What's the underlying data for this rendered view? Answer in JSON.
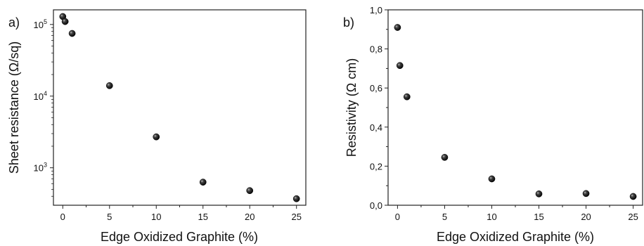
{
  "chart_data": [
    {
      "panel_label": "a)",
      "type": "scatter",
      "xlabel": "Edge Oxidized Graphite (%)",
      "ylabel": "Sheet resistance (Ω/sq)",
      "y_scale": "log",
      "xlim": [
        -1,
        26
      ],
      "ylim": [
        300,
        160000
      ],
      "x_ticks": [
        0,
        5,
        10,
        15,
        20,
        25
      ],
      "y_ticks": [
        1000,
        10000,
        100000
      ],
      "y_tick_labels": [
        {
          "base": "10",
          "exp": "3"
        },
        {
          "base": "10",
          "exp": "4"
        },
        {
          "base": "10",
          "exp": "5"
        }
      ],
      "grid": false,
      "points": [
        {
          "x": 0,
          "y": 129000
        },
        {
          "x": 0.25,
          "y": 110000
        },
        {
          "x": 1,
          "y": 75000
        },
        {
          "x": 5,
          "y": 14000
        },
        {
          "x": 10,
          "y": 2700
        },
        {
          "x": 15,
          "y": 630
        },
        {
          "x": 20,
          "y": 480
        },
        {
          "x": 25,
          "y": 370
        }
      ]
    },
    {
      "panel_label": "b)",
      "type": "scatter",
      "xlabel": "Edge Oxidized Graphite (%)",
      "ylabel": "Resistivity (Ω cm)",
      "y_scale": "linear",
      "xlim": [
        -1,
        26
      ],
      "ylim": [
        0,
        1.0
      ],
      "x_ticks": [
        0,
        5,
        10,
        15,
        20,
        25
      ],
      "x_tick_labels": [
        "0",
        "5",
        "10",
        "15",
        "20",
        "25"
      ],
      "y_ticks": [
        0,
        0.2,
        0.4,
        0.6,
        0.8,
        1.0
      ],
      "y_tick_labels": [
        "0,0",
        "0,2",
        "0,4",
        "0,6",
        "0,8",
        "1,0"
      ],
      "grid": false,
      "points": [
        {
          "x": 0,
          "y": 0.91
        },
        {
          "x": 0.25,
          "y": 0.715
        },
        {
          "x": 1,
          "y": 0.555
        },
        {
          "x": 5,
          "y": 0.245
        },
        {
          "x": 10,
          "y": 0.135
        },
        {
          "x": 15,
          "y": 0.058
        },
        {
          "x": 20,
          "y": 0.06
        },
        {
          "x": 25,
          "y": 0.045
        }
      ]
    }
  ],
  "colors": {
    "axis": "#222222",
    "marker": "#000000"
  }
}
